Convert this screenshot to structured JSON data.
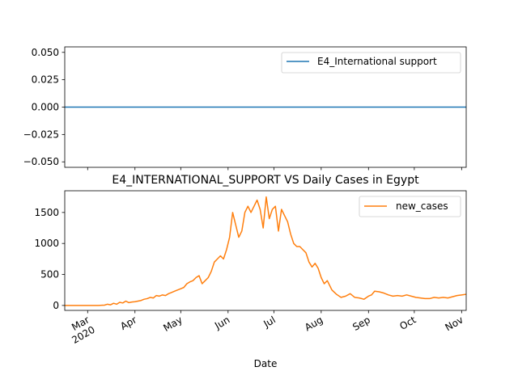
{
  "chart_data": [
    {
      "type": "line",
      "title": "",
      "xlabel": "",
      "ylabel": "",
      "ylim": [
        -0.055,
        0.055
      ],
      "yticks": [
        -0.05,
        -0.025,
        0.0,
        0.025,
        0.05
      ],
      "ytick_labels": [
        "−0.050",
        "−0.025",
        "0.000",
        "0.025",
        "0.050"
      ],
      "legend_position": "upper right",
      "series": [
        {
          "name": "E4_International support",
          "color": "#1f77b4",
          "x": [
            "2020-02-15",
            "2020-11-04"
          ],
          "y": [
            0,
            0
          ]
        }
      ]
    },
    {
      "type": "line",
      "title": "E4_INTERNATIONAL_SUPPORT VS Daily Cases in Egypt",
      "xlabel": "Date",
      "ylabel": "",
      "ylim": [
        -80,
        1850
      ],
      "yticks": [
        0,
        500,
        1000,
        1500
      ],
      "ytick_labels": [
        "0",
        "500",
        "1000",
        "1500"
      ],
      "xlim": [
        "2020-02-15",
        "2020-11-04"
      ],
      "xticks": [
        "2020-03-01",
        "2020-04-01",
        "2020-05-01",
        "2020-06-01",
        "2020-07-01",
        "2020-08-01",
        "2020-09-01",
        "2020-10-01",
        "2020-11-01"
      ],
      "xtick_labels": [
        "Mar\n2020",
        "Apr",
        "May",
        "Jun",
        "Jul",
        "Aug",
        "Sep",
        "Oct",
        "Nov"
      ],
      "legend_position": "upper right",
      "series": [
        {
          "name": "new_cases",
          "color": "#ff7f0e",
          "x": [
            "2020-02-15",
            "2020-03-01",
            "2020-03-08",
            "2020-03-12",
            "2020-03-14",
            "2020-03-16",
            "2020-03-18",
            "2020-03-20",
            "2020-03-22",
            "2020-03-24",
            "2020-03-26",
            "2020-03-28",
            "2020-03-30",
            "2020-04-01",
            "2020-04-03",
            "2020-04-05",
            "2020-04-07",
            "2020-04-09",
            "2020-04-11",
            "2020-04-13",
            "2020-04-15",
            "2020-04-17",
            "2020-04-19",
            "2020-04-21",
            "2020-04-23",
            "2020-04-25",
            "2020-04-27",
            "2020-04-29",
            "2020-05-01",
            "2020-05-03",
            "2020-05-05",
            "2020-05-07",
            "2020-05-09",
            "2020-05-11",
            "2020-05-13",
            "2020-05-15",
            "2020-05-17",
            "2020-05-19",
            "2020-05-21",
            "2020-05-23",
            "2020-05-25",
            "2020-05-27",
            "2020-05-29",
            "2020-05-31",
            "2020-06-02",
            "2020-06-04",
            "2020-06-06",
            "2020-06-08",
            "2020-06-10",
            "2020-06-12",
            "2020-06-14",
            "2020-06-16",
            "2020-06-18",
            "2020-06-20",
            "2020-06-22",
            "2020-06-24",
            "2020-06-26",
            "2020-06-28",
            "2020-06-30",
            "2020-07-02",
            "2020-07-04",
            "2020-07-06",
            "2020-07-08",
            "2020-07-10",
            "2020-07-12",
            "2020-07-14",
            "2020-07-16",
            "2020-07-18",
            "2020-07-20",
            "2020-07-22",
            "2020-07-24",
            "2020-07-26",
            "2020-07-28",
            "2020-07-30",
            "2020-08-01",
            "2020-08-03",
            "2020-08-05",
            "2020-08-08",
            "2020-08-11",
            "2020-08-14",
            "2020-08-17",
            "2020-08-20",
            "2020-08-23",
            "2020-08-26",
            "2020-08-29",
            "2020-09-01",
            "2020-09-03",
            "2020-09-05",
            "2020-09-08",
            "2020-09-11",
            "2020-09-14",
            "2020-09-17",
            "2020-09-20",
            "2020-09-23",
            "2020-09-26",
            "2020-09-29",
            "2020-10-02",
            "2020-10-05",
            "2020-10-08",
            "2020-10-11",
            "2020-10-14",
            "2020-10-17",
            "2020-10-20",
            "2020-10-23",
            "2020-10-26",
            "2020-10-29",
            "2020-11-01",
            "2020-11-04"
          ],
          "y": [
            0,
            0,
            0,
            5,
            20,
            10,
            35,
            20,
            50,
            40,
            70,
            45,
            55,
            60,
            70,
            80,
            100,
            110,
            130,
            120,
            160,
            150,
            170,
            160,
            190,
            210,
            230,
            250,
            270,
            290,
            350,
            380,
            400,
            450,
            480,
            350,
            400,
            450,
            550,
            700,
            750,
            800,
            750,
            900,
            1100,
            1500,
            1300,
            1100,
            1200,
            1500,
            1600,
            1500,
            1600,
            1700,
            1550,
            1250,
            1750,
            1400,
            1550,
            1600,
            1200,
            1550,
            1450,
            1350,
            1150,
            1000,
            950,
            950,
            900,
            850,
            700,
            620,
            680,
            600,
            450,
            350,
            400,
            250,
            180,
            130,
            150,
            190,
            130,
            120,
            100,
            150,
            170,
            230,
            220,
            200,
            170,
            150,
            160,
            150,
            170,
            150,
            130,
            120,
            110,
            110,
            130,
            120,
            130,
            120,
            140,
            160,
            170,
            180
          ]
        }
      ]
    }
  ]
}
